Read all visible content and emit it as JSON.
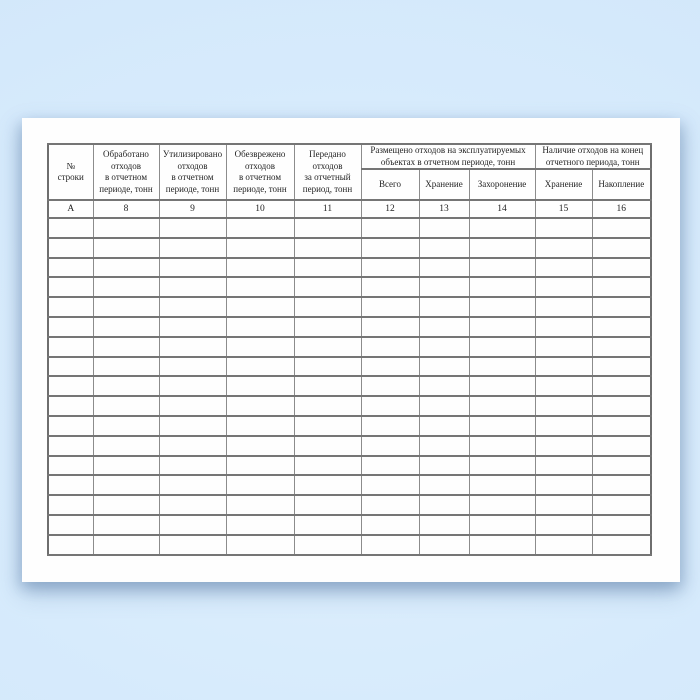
{
  "colors": {
    "background_blue": "#d7ebfc",
    "page_white": "#fefefe",
    "border_gray": "#8c8c8c",
    "text_dark": "#242424"
  },
  "table": {
    "row_number_header": "№\nстроки",
    "row_number_code": "А",
    "main_columns": [
      {
        "label": "Обработано\nотходов\nв отчетном\nпериоде, тонн",
        "code": "8"
      },
      {
        "label": "Утилизировано\nотходов\nв отчетном\nпериоде, тонн",
        "code": "9"
      },
      {
        "label": "Обезврежено\nотходов\nв отчетном\nпериоде, тонн",
        "code": "10"
      },
      {
        "label": "Передано\nотходов\nза отчетный\nпериод, тонн",
        "code": "11"
      }
    ],
    "groups": [
      {
        "label": "Размещено отходов на эксплуатируемых\nобъектах в отчетном периоде, тонн",
        "subcolumns": [
          {
            "label": "Всего",
            "code": "12"
          },
          {
            "label": "Хранение",
            "code": "13"
          },
          {
            "label": "Захоронение",
            "code": "14"
          }
        ]
      },
      {
        "label": "Наличие отходов на конец\nотчетного периода, тонн",
        "subcolumns": [
          {
            "label": "Хранение",
            "code": "15"
          },
          {
            "label": "Накопление",
            "code": "16"
          }
        ]
      }
    ],
    "empty_row_count": 17
  }
}
